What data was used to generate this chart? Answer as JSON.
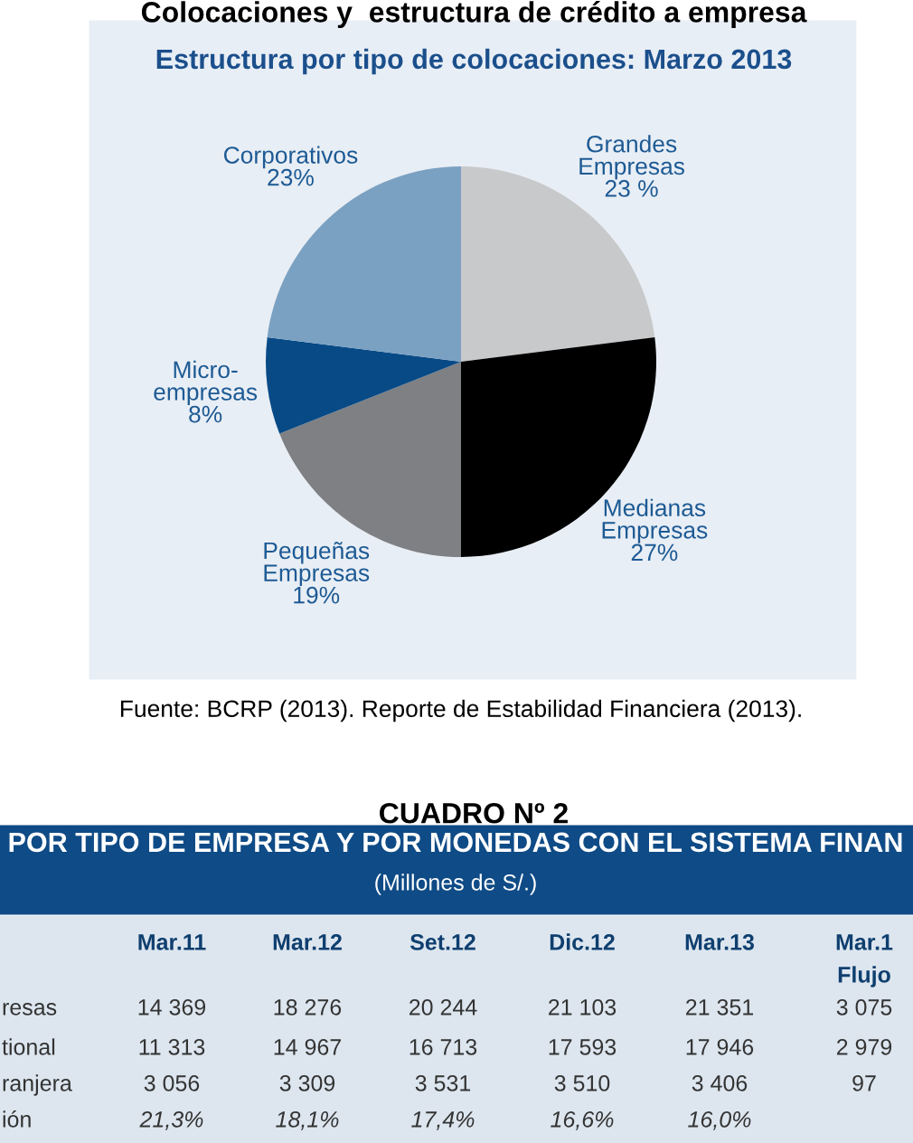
{
  "chart_data": [
    {
      "type": "pie",
      "title": "Colocaciones y  estructura de crédito a empresa",
      "subtitle": "Estructura por tipo de colocaciones: Marzo 2013",
      "categories": [
        "Grandes\nEmpresas",
        "Medianas\nEmpresas",
        "Pequeñas\nEmpresas",
        "Micro-\nempresas",
        "Corporativos"
      ],
      "values": [
        23,
        27,
        19,
        8,
        23
      ],
      "value_labels": [
        "23 %",
        "27%",
        "19%",
        "8%",
        "23%"
      ],
      "colors": [
        "#c8c9cb",
        "#000000",
        "#7f8083",
        "#074a86",
        "#7ba1c2"
      ],
      "annotations": [
        "Fuente: BCRP (2013). Reporte de Estabilidad Financiera (2013)."
      ]
    },
    {
      "type": "other",
      "title": "CUADRO Nº 2",
      "subtitle": "POR TIPO DE EMPRESA Y POR MONEDAS CON EL SISTEMA FINAN",
      "ylabel": "(Millones de S/.)",
      "categories": [
        "Mar.11",
        "Mar.12",
        "Set.12",
        "Dic.12",
        "Mar.13",
        "Mar.1\nFlujo"
      ],
      "y_categories": [
        "resas",
        "tional",
        "ranjera",
        "ión"
      ],
      "cells": [
        [
          null,
          null,
          null,
          null,
          null,
          null
        ],
        [
          null,
          null,
          null,
          null,
          null,
          null
        ],
        [
          null,
          null,
          null,
          null,
          null,
          null
        ],
        [
          null,
          null,
          null,
          null,
          null,
          null
        ]
      ],
      "cell_labels": [
        [
          "14 369",
          "18 276",
          "20 244",
          "21 103",
          "21 351",
          "3 075"
        ],
        [
          "11 313",
          "14 967",
          "16 713",
          "17 593",
          "17 946",
          "2 979"
        ],
        [
          "3 056",
          "3 309",
          "3 531",
          "3 510",
          "3 406",
          "97"
        ],
        [
          "21,3%",
          "18,1%",
          "17,4%",
          "16,6%",
          "16,0%",
          null
        ]
      ]
    }
  ]
}
